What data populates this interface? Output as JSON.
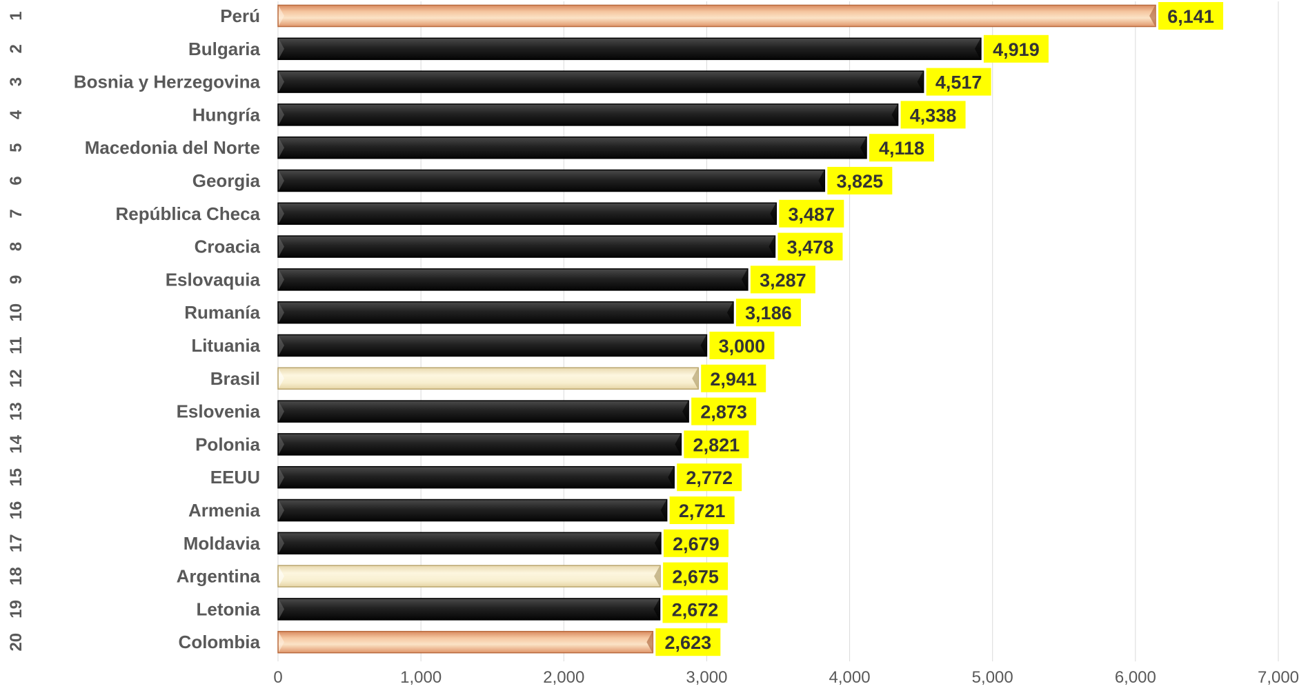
{
  "chart_data": {
    "type": "bar",
    "orientation": "horizontal",
    "title": "",
    "xlabel": "",
    "ylabel": "",
    "xlim": [
      0,
      7000
    ],
    "x_ticks": [
      0,
      1000,
      2000,
      3000,
      4000,
      5000,
      6000,
      7000
    ],
    "x_tick_labels": [
      "0",
      "1,000",
      "2,000",
      "3,000",
      "4,000",
      "5,000",
      "6,000",
      "7,000"
    ],
    "grid": "vertical",
    "legend": "none",
    "categories": [
      "Perú",
      "Bulgaria",
      "Bosnia y Herzegovina",
      "Hungría",
      "Macedonia del Norte",
      "Georgia",
      "República Checa",
      "Croacia",
      "Eslovaquia",
      "Rumanía",
      "Lituania",
      "Brasil",
      "Eslovenia",
      "Polonia",
      "EEUU",
      "Armenia",
      "Moldavia",
      "Argentina",
      "Letonia",
      "Colombia"
    ],
    "ranks": [
      "1",
      "2",
      "3",
      "4",
      "5",
      "6",
      "7",
      "8",
      "9",
      "10",
      "11",
      "12",
      "13",
      "14",
      "15",
      "16",
      "17",
      "18",
      "19",
      "20"
    ],
    "values": [
      6141,
      4919,
      4517,
      4338,
      4118,
      3825,
      3487,
      3478,
      3287,
      3186,
      3000,
      2941,
      2873,
      2821,
      2772,
      2721,
      2679,
      2675,
      2672,
      2623
    ],
    "value_labels": [
      "6,141",
      "4,919",
      "4,517",
      "4,338",
      "4,118",
      "3,825",
      "3,487",
      "3,478",
      "3,287",
      "3,186",
      "3,000",
      "2,941",
      "2,873",
      "2,821",
      "2,772",
      "2,721",
      "2,679",
      "2,675",
      "2,672",
      "2,623"
    ],
    "bar_styles": [
      "peach",
      "black",
      "black",
      "black",
      "black",
      "black",
      "black",
      "black",
      "black",
      "black",
      "black",
      "cream",
      "black",
      "black",
      "black",
      "black",
      "black",
      "cream",
      "black",
      "peach"
    ],
    "colors": {
      "black_bar": "#1a1a1a",
      "peach_bar": "#eca77c",
      "cream_bar": "#f7ecc9",
      "label_highlight": "#ffff00",
      "label_text": "#333333",
      "category_text": "#595959",
      "rank_text": "#595959",
      "tick_text": "#595959",
      "gridline": "#d9d9d9"
    }
  }
}
